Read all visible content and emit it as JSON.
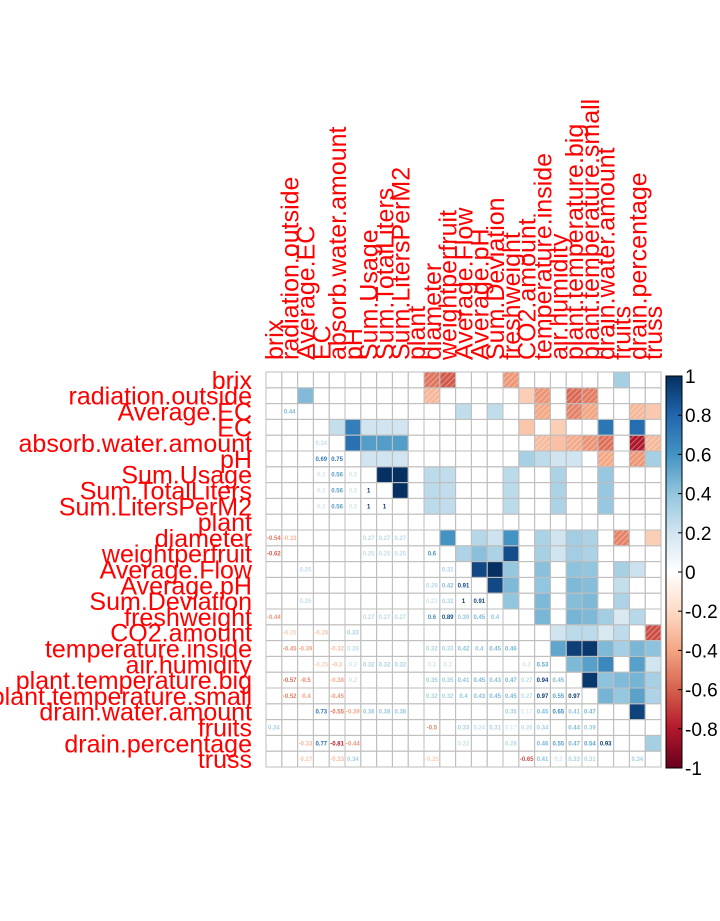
{
  "chart_data": {
    "type": "heatmap",
    "variables": [
      "brix",
      "radiation.outside",
      "Average.EC",
      "EC",
      "absorb.water.amount",
      "pH",
      "Sum.Usage",
      "Sum.TotalLiters",
      "Sum.LitersPerM2",
      "plant",
      "diameter",
      "weightperfruit",
      "Average.Flow",
      "Average.pH",
      "Sum.Deviation",
      "freshweight",
      "CO2.amount",
      "temperature.inside",
      "air.humidity",
      "plant.temperature.big",
      "plant.temperature.small",
      "drain.water.amount",
      "fruits",
      "drain.percentage",
      "truss"
    ],
    "matrix": [
      [
        1,
        0,
        0,
        0,
        0,
        0,
        0,
        0,
        0,
        0,
        -0.54,
        -0.62,
        0,
        0,
        0,
        -0.44,
        0,
        0,
        0,
        0,
        0,
        0,
        0.34,
        0,
        0
      ],
      [
        0,
        1,
        0.44,
        0,
        0,
        0,
        0,
        0,
        0,
        0,
        -0.33,
        0,
        0,
        0,
        0,
        0,
        -0.25,
        -0.45,
        0,
        -0.57,
        -0.52,
        0,
        0,
        0,
        0
      ],
      [
        0,
        0.44,
        1,
        0,
        0,
        0,
        0,
        0,
        0,
        0,
        0,
        0,
        0.25,
        0,
        0.25,
        0,
        0,
        -0.39,
        0,
        -0.5,
        -0.4,
        0,
        0,
        -0.33,
        -0.27
      ],
      [
        0,
        0,
        0,
        1,
        0.24,
        0.69,
        0.2,
        0.2,
        0.2,
        0,
        0,
        0,
        0,
        0,
        0,
        0,
        -0.28,
        0,
        -0.25,
        0,
        0,
        0.73,
        0,
        0.77,
        0
      ],
      [
        0,
        0,
        0,
        0.24,
        1,
        0.75,
        0.56,
        0.56,
        0.56,
        0,
        0,
        0,
        0,
        0,
        0,
        0,
        0,
        -0.32,
        -0.3,
        -0.38,
        -0.45,
        -0.55,
        0,
        -0.81,
        -0.33
      ],
      [
        0,
        0,
        0,
        0.69,
        0.75,
        1,
        0.2,
        0.2,
        0.2,
        0,
        0,
        0,
        0,
        0,
        0,
        0,
        0.33,
        0.26,
        0.2,
        0.2,
        0,
        -0.39,
        0,
        -0.44,
        0.34
      ],
      [
        0,
        0,
        0,
        0.2,
        0.56,
        0.2,
        1,
        1,
        1,
        0,
        0.27,
        0.25,
        0,
        0,
        0,
        0.27,
        0,
        0,
        0.32,
        0,
        0,
        0.38,
        0,
        0,
        0
      ],
      [
        0,
        0,
        0,
        0.2,
        0.56,
        0.2,
        1,
        1,
        1,
        0,
        0.27,
        0.25,
        0,
        0,
        0,
        0.27,
        0,
        0,
        0.32,
        0,
        0,
        0.38,
        0,
        0,
        0
      ],
      [
        0,
        0,
        0,
        0.2,
        0.56,
        0.2,
        1,
        1,
        1,
        0,
        0.27,
        0.25,
        0,
        0,
        0,
        0.27,
        0,
        0,
        0.32,
        0,
        0,
        0.38,
        0,
        0,
        0
      ],
      [
        0,
        0,
        0,
        0,
        0,
        0,
        0,
        0,
        0,
        1,
        0,
        0,
        0,
        0,
        0,
        0,
        0,
        0,
        0,
        0,
        0,
        0,
        0,
        0,
        0
      ],
      [
        -0.54,
        -0.33,
        0,
        0,
        0,
        0,
        0.27,
        0.27,
        0.27,
        0,
        1,
        0.6,
        0,
        0.29,
        0.21,
        0.6,
        0,
        0.32,
        0.2,
        0.35,
        0.32,
        0,
        -0.5,
        0,
        -0.25
      ],
      [
        -0.62,
        0,
        0,
        0,
        0,
        0,
        0.25,
        0.25,
        0.25,
        0,
        0.6,
        1,
        0.31,
        0.42,
        0.32,
        0.89,
        0,
        0.33,
        0.2,
        0.35,
        0.32,
        0,
        0,
        0,
        0
      ],
      [
        0,
        0,
        0.25,
        0,
        0,
        0,
        0,
        0,
        0,
        0,
        0,
        0.31,
        1,
        0.91,
        1,
        0.39,
        0,
        0.42,
        0,
        0.41,
        0.4,
        0,
        0.33,
        0.22,
        0
      ],
      [
        0,
        0,
        0,
        0,
        0,
        0,
        0,
        0,
        0,
        0,
        0.29,
        0.42,
        0.91,
        1,
        0.91,
        0.45,
        0,
        0.4,
        0,
        0.45,
        0.43,
        0,
        0.24,
        0,
        0
      ],
      [
        0,
        0,
        0.25,
        0,
        0,
        0,
        0,
        0,
        0,
        0,
        0.21,
        0.32,
        1,
        0.91,
        1,
        0.4,
        0,
        0.45,
        0,
        0.43,
        0.45,
        0,
        0.31,
        0,
        0
      ],
      [
        -0.44,
        0,
        0,
        0,
        0,
        0,
        0.27,
        0.27,
        0.27,
        0,
        0.6,
        0.89,
        0.39,
        0.45,
        0.4,
        1,
        0,
        0.46,
        0,
        0.47,
        0.45,
        0.35,
        0.17,
        0.28,
        0
      ],
      [
        0,
        -0.25,
        0,
        -0.28,
        0,
        0.33,
        0,
        0,
        0,
        0,
        0,
        0,
        0,
        0,
        0,
        0,
        1,
        0,
        0.2,
        0.27,
        0.27,
        0.17,
        0.26,
        0,
        -0.65
      ],
      [
        0,
        -0.45,
        -0.39,
        0,
        -0.32,
        0.26,
        0,
        0,
        0,
        0,
        0.32,
        0.33,
        0.42,
        0.4,
        0.45,
        0.46,
        0,
        1,
        0.53,
        0.94,
        0.97,
        0.45,
        0.34,
        0.46,
        0.41
      ],
      [
        0,
        0,
        0,
        -0.25,
        -0.3,
        0.2,
        0.32,
        0.32,
        0.32,
        0,
        0.2,
        0.2,
        0,
        0,
        0,
        0,
        0.2,
        0.53,
        1,
        0.45,
        0.55,
        0.65,
        0,
        0.55,
        0.2
      ],
      [
        0,
        -0.57,
        -0.5,
        0,
        -0.38,
        0.2,
        0,
        0,
        0,
        0,
        0.35,
        0.35,
        0.41,
        0.45,
        0.43,
        0.47,
        0.27,
        0.94,
        0.45,
        1,
        0.97,
        0.41,
        0.44,
        0.47,
        0.33
      ],
      [
        0,
        -0.52,
        -0.4,
        0,
        -0.45,
        0,
        0,
        0,
        0,
        0,
        0.32,
        0.32,
        0.4,
        0.43,
        0.45,
        0.45,
        0.27,
        0.97,
        0.55,
        0.97,
        1,
        0.47,
        0.39,
        0.54,
        0.31
      ],
      [
        0,
        0,
        0,
        0.73,
        -0.55,
        -0.39,
        0.38,
        0.38,
        0.38,
        0,
        0,
        0,
        0,
        0,
        0,
        0.35,
        0.17,
        0.45,
        0.65,
        0.41,
        0.47,
        1,
        0,
        0.93,
        0
      ],
      [
        0.34,
        0,
        0,
        0,
        0,
        0,
        0,
        0,
        0,
        0,
        -0.5,
        0,
        0.33,
        0.24,
        0.31,
        0.17,
        0.26,
        0.34,
        0,
        0.44,
        0.39,
        0,
        1,
        0,
        0
      ],
      [
        0,
        0,
        -0.33,
        0.77,
        -0.81,
        -0.44,
        0,
        0,
        0,
        0,
        0,
        0,
        0.22,
        0,
        0,
        0.28,
        0,
        0.46,
        0.55,
        0.47,
        0.54,
        0.93,
        0,
        1,
        0.34
      ],
      [
        0,
        0,
        -0.27,
        0,
        -0.33,
        0.34,
        0,
        0,
        0,
        0,
        -0.25,
        0,
        0,
        0,
        0,
        0,
        -0.65,
        0.41,
        0.2,
        0.33,
        0.31,
        0,
        0,
        0.34,
        1
      ]
    ],
    "colorbar": {
      "range": [
        -1,
        1
      ],
      "ticks": [
        "1",
        "0.8",
        "0.6",
        "0.4",
        "0.2",
        "0",
        "-0.2",
        "-0.4",
        "-0.6",
        "-0.8",
        "-1"
      ]
    },
    "upper_triangle": "shaded squares",
    "lower_triangle": "correlation coefficients",
    "colors": {
      "label": "#ff0000",
      "pos_strong": "#053061",
      "neg_strong": "#67001f",
      "grid": "#bebebe"
    }
  }
}
